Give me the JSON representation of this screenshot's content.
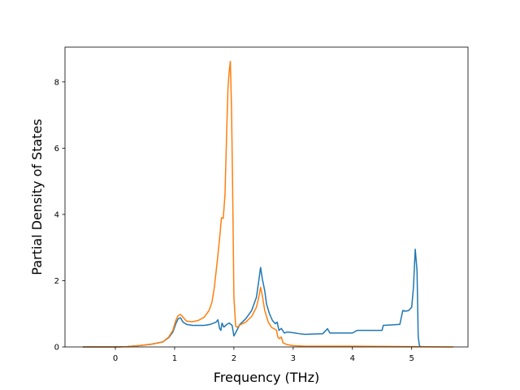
{
  "chart_data": {
    "type": "line",
    "xlabel": "Frequency (THz)",
    "ylabel": "Partial Density of States",
    "xlim": [
      -0.85,
      5.95
    ],
    "ylim": [
      0,
      9.05
    ],
    "xticks": [
      0,
      1,
      2,
      3,
      4,
      5
    ],
    "yticks": [
      0,
      2,
      4,
      6,
      8
    ],
    "grid": false,
    "series": [
      {
        "color": "#1f77b4",
        "points": [
          [
            -0.55,
            0
          ],
          [
            0.0,
            0
          ],
          [
            0.2,
            0.01
          ],
          [
            0.4,
            0.04
          ],
          [
            0.6,
            0.08
          ],
          [
            0.8,
            0.15
          ],
          [
            0.9,
            0.28
          ],
          [
            0.97,
            0.45
          ],
          [
            1.02,
            0.7
          ],
          [
            1.06,
            0.85
          ],
          [
            1.1,
            0.88
          ],
          [
            1.14,
            0.75
          ],
          [
            1.2,
            0.68
          ],
          [
            1.3,
            0.65
          ],
          [
            1.5,
            0.65
          ],
          [
            1.6,
            0.68
          ],
          [
            1.7,
            0.75
          ],
          [
            1.73,
            0.82
          ],
          [
            1.76,
            0.55
          ],
          [
            1.78,
            0.5
          ],
          [
            1.8,
            0.72
          ],
          [
            1.83,
            0.6
          ],
          [
            1.88,
            0.68
          ],
          [
            1.92,
            0.72
          ],
          [
            1.97,
            0.65
          ],
          [
            2.0,
            0.33
          ],
          [
            2.05,
            0.5
          ],
          [
            2.1,
            0.68
          ],
          [
            2.2,
            0.85
          ],
          [
            2.3,
            1.1
          ],
          [
            2.38,
            1.5
          ],
          [
            2.42,
            2.0
          ],
          [
            2.45,
            2.4
          ],
          [
            2.48,
            2.05
          ],
          [
            2.52,
            1.7
          ],
          [
            2.55,
            1.3
          ],
          [
            2.6,
            1.0
          ],
          [
            2.65,
            0.8
          ],
          [
            2.7,
            0.7
          ],
          [
            2.73,
            0.75
          ],
          [
            2.76,
            0.5
          ],
          [
            2.8,
            0.56
          ],
          [
            2.85,
            0.42
          ],
          [
            2.9,
            0.45
          ],
          [
            3.0,
            0.43
          ],
          [
            3.1,
            0.4
          ],
          [
            3.2,
            0.38
          ],
          [
            3.5,
            0.4
          ],
          [
            3.58,
            0.55
          ],
          [
            3.62,
            0.42
          ],
          [
            4.0,
            0.42
          ],
          [
            4.08,
            0.5
          ],
          [
            4.5,
            0.5
          ],
          [
            4.52,
            0.65
          ],
          [
            4.8,
            0.68
          ],
          [
            4.85,
            1.1
          ],
          [
            4.9,
            1.08
          ],
          [
            4.95,
            1.1
          ],
          [
            5.0,
            1.2
          ],
          [
            5.03,
            1.8
          ],
          [
            5.06,
            2.95
          ],
          [
            5.09,
            2.3
          ],
          [
            5.11,
            0.3
          ],
          [
            5.13,
            0.05
          ],
          [
            5.15,
            0
          ]
        ]
      },
      {
        "color": "#ff7f0e",
        "points": [
          [
            -0.55,
            0
          ],
          [
            0.0,
            0
          ],
          [
            0.2,
            0.01
          ],
          [
            0.4,
            0.04
          ],
          [
            0.6,
            0.08
          ],
          [
            0.8,
            0.15
          ],
          [
            0.9,
            0.3
          ],
          [
            0.97,
            0.5
          ],
          [
            1.02,
            0.8
          ],
          [
            1.06,
            0.95
          ],
          [
            1.1,
            0.98
          ],
          [
            1.14,
            0.9
          ],
          [
            1.2,
            0.78
          ],
          [
            1.3,
            0.76
          ],
          [
            1.4,
            0.8
          ],
          [
            1.5,
            0.9
          ],
          [
            1.58,
            1.1
          ],
          [
            1.63,
            1.35
          ],
          [
            1.67,
            1.8
          ],
          [
            1.72,
            2.6
          ],
          [
            1.76,
            3.3
          ],
          [
            1.79,
            3.9
          ],
          [
            1.82,
            3.88
          ],
          [
            1.85,
            4.6
          ],
          [
            1.88,
            6.6
          ],
          [
            1.9,
            7.8
          ],
          [
            1.92,
            8.3
          ],
          [
            1.94,
            8.62
          ],
          [
            1.96,
            7.2
          ],
          [
            1.98,
            4.6
          ],
          [
            2.0,
            1.5
          ],
          [
            2.03,
            0.62
          ],
          [
            2.06,
            0.6
          ],
          [
            2.1,
            0.66
          ],
          [
            2.2,
            0.75
          ],
          [
            2.3,
            0.92
          ],
          [
            2.38,
            1.2
          ],
          [
            2.42,
            1.5
          ],
          [
            2.45,
            1.8
          ],
          [
            2.48,
            1.55
          ],
          [
            2.52,
            1.1
          ],
          [
            2.58,
            0.75
          ],
          [
            2.64,
            0.58
          ],
          [
            2.68,
            0.55
          ],
          [
            2.72,
            0.5
          ],
          [
            2.74,
            0.3
          ],
          [
            2.77,
            0.25
          ],
          [
            2.8,
            0.3
          ],
          [
            2.83,
            0.12
          ],
          [
            2.9,
            0.07
          ],
          [
            3.0,
            0.04
          ],
          [
            3.2,
            0.02
          ],
          [
            4.0,
            0.02
          ],
          [
            5.0,
            0.01
          ],
          [
            5.6,
            0.0
          ],
          [
            5.7,
            0
          ]
        ]
      }
    ]
  }
}
